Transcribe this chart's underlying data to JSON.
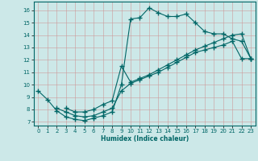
{
  "xlabel": "Humidex (Indice chaleur)",
  "bg_color": "#cce8e8",
  "line_color": "#006666",
  "xlim": [
    -0.5,
    23.5
  ],
  "ylim": [
    6.7,
    16.7
  ],
  "yticks": [
    7,
    8,
    9,
    10,
    11,
    12,
    13,
    14,
    15,
    16
  ],
  "xticks": [
    0,
    1,
    2,
    3,
    4,
    5,
    6,
    7,
    8,
    9,
    10,
    11,
    12,
    13,
    14,
    15,
    16,
    17,
    18,
    19,
    20,
    21,
    22,
    23
  ],
  "line1_x": [
    0,
    1,
    2,
    3,
    4,
    5,
    6,
    7,
    8,
    9,
    10,
    11,
    12,
    13,
    14,
    15,
    16,
    17,
    18,
    19,
    20,
    21,
    22,
    23
  ],
  "line1_y": [
    9.5,
    8.8,
    7.9,
    7.4,
    7.2,
    7.1,
    7.3,
    7.5,
    7.8,
    10.0,
    15.3,
    15.4,
    16.2,
    15.8,
    15.5,
    15.5,
    15.7,
    15.0,
    14.3,
    14.1,
    14.1,
    13.7,
    13.5,
    12.1
  ],
  "line2_x": [
    3,
    4,
    5,
    6,
    7,
    8,
    9,
    10,
    11,
    12,
    13,
    14,
    15,
    16,
    17,
    18,
    19,
    20,
    21,
    22,
    23
  ],
  "line2_y": [
    8.1,
    7.8,
    7.8,
    8.0,
    8.4,
    8.7,
    11.5,
    10.2,
    10.5,
    10.8,
    11.2,
    11.6,
    12.0,
    12.4,
    12.8,
    13.1,
    13.4,
    13.7,
    14.0,
    14.1,
    12.1
  ],
  "line3_x": [
    2,
    3,
    4,
    5,
    6,
    7,
    8,
    9,
    10,
    11,
    12,
    13,
    14,
    15,
    16,
    17,
    18,
    19,
    20,
    21,
    22,
    23
  ],
  "line3_y": [
    8.1,
    7.8,
    7.5,
    7.4,
    7.5,
    7.8,
    8.1,
    9.5,
    10.1,
    10.4,
    10.7,
    11.0,
    11.4,
    11.8,
    12.2,
    12.6,
    12.8,
    13.0,
    13.2,
    13.5,
    12.1,
    12.1
  ]
}
